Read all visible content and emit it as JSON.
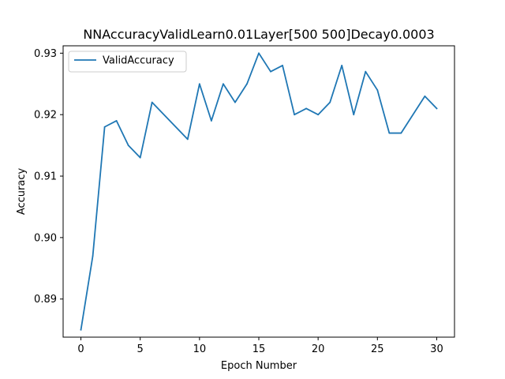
{
  "chart_data": {
    "type": "line",
    "title": "NNAccuracyValidLearn0.01Layer[500 500]Decay0.0003",
    "xlabel": "Epoch Number",
    "ylabel": "Accuracy",
    "xlim": [
      -1.5,
      31.5
    ],
    "ylim": [
      0.8838,
      0.9312
    ],
    "xticks": [
      0,
      5,
      10,
      15,
      20,
      25,
      30
    ],
    "yticks": [
      0.89,
      0.9,
      0.91,
      0.92,
      0.93
    ],
    "ytick_labels": [
      "0.89",
      "0.90",
      "0.91",
      "0.92",
      "0.93"
    ],
    "grid": false,
    "legend": "top-left",
    "series": [
      {
        "name": "ValidAccuracy",
        "color": "#1f77b4",
        "x": [
          0,
          1,
          2,
          3,
          4,
          5,
          6,
          9,
          10,
          11,
          12,
          13,
          14,
          15,
          16,
          17,
          18,
          19,
          20,
          21,
          22,
          23,
          24,
          25,
          26,
          27,
          29,
          30
        ],
        "y": [
          0.885,
          0.897,
          0.918,
          0.919,
          0.915,
          0.913,
          0.922,
          0.916,
          0.925,
          0.919,
          0.925,
          0.922,
          0.925,
          0.93,
          0.927,
          0.928,
          0.92,
          0.921,
          0.92,
          0.922,
          0.928,
          0.92,
          0.927,
          0.924,
          0.917,
          0.917,
          0.923,
          0.921
        ]
      }
    ]
  }
}
